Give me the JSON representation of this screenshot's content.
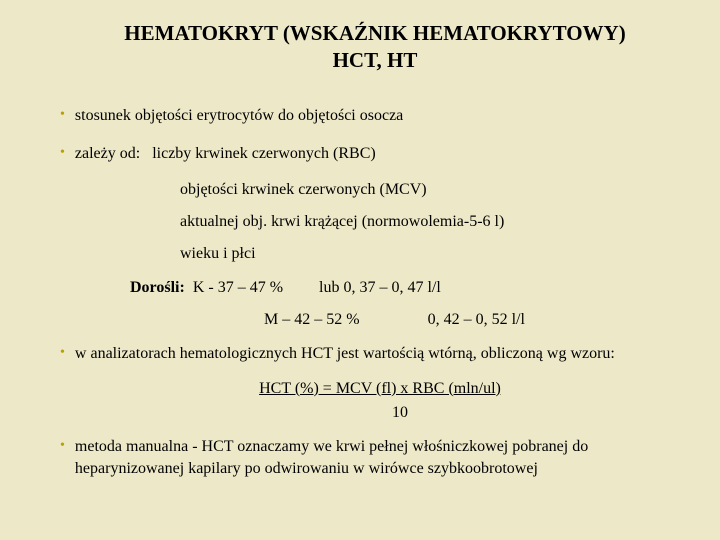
{
  "title_line1": "HEMATOKRYT (WSKAŹNIK HEMATOKRYTOWY)",
  "title_line2": "HCT, HT",
  "bullets": {
    "b1": "stosunek objętości erytrocytów do objętości osocza",
    "b2_prefix": "zależy od:",
    "b2_item1": "liczby krwinek czerwonych (RBC)",
    "sub_mcv": "objętości krwinek czerwonych (MCV)",
    "sub_vol": "aktualnej obj. krwi krążącej (normowolemia-5-6 l)",
    "sub_age": "wieku i płci",
    "b3": "w analizatorach hematologicznych HCT jest wartością wtórną, obliczoną wg wzoru:",
    "b4": "metoda manualna - HCT oznaczamy we krwi pełnej włośniczkowej pobranej do heparynizowanej kapilary po odwirowaniu w wirówce szybkoobrotowej"
  },
  "adults": {
    "label": "Dorośli:",
    "k_range": "K  - 37 – 47 %",
    "k_alt": "lub  0, 37 – 0, 47 l/l",
    "m_range": "M – 42 – 52 %",
    "m_alt": "0, 42 – 0, 52 l/l"
  },
  "formula": {
    "main": "HCT (%) = MCV  (fl)  x  RBC  (mln/ul)",
    "denom": "10"
  },
  "colors": {
    "background": "#ede8c8",
    "bullet": "#b8a000",
    "text": "#000000"
  },
  "typography": {
    "title_fontsize": 21,
    "body_fontsize": 16,
    "font_family": "Times New Roman"
  }
}
